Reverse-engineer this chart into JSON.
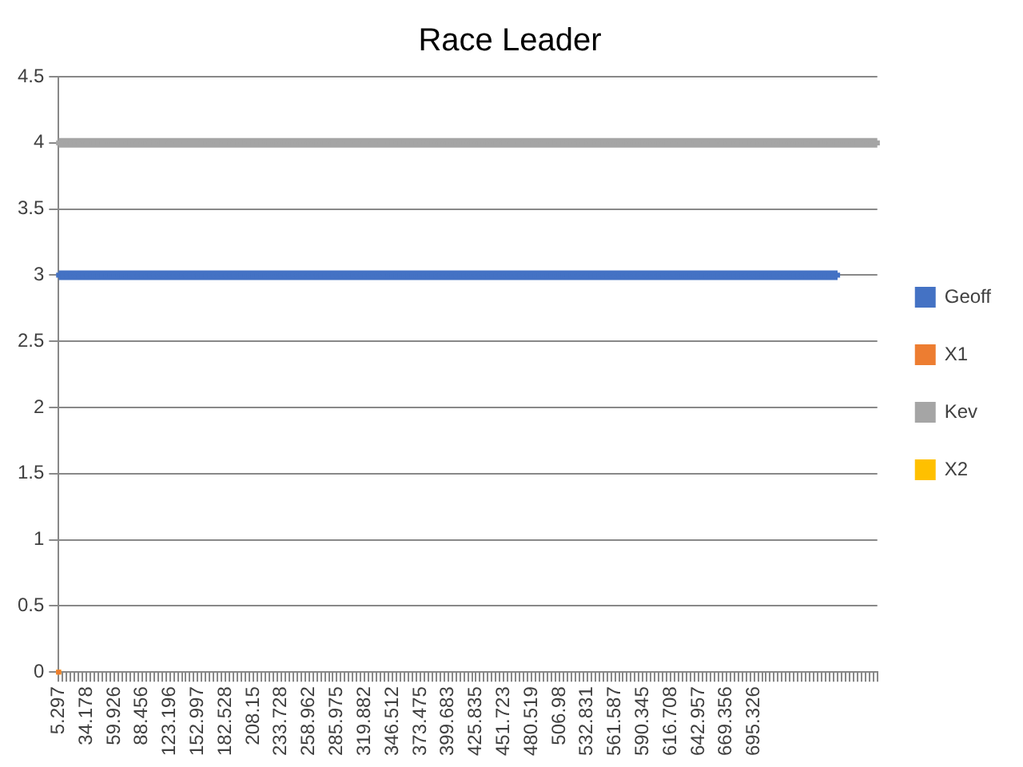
{
  "chart_data": {
    "type": "line",
    "title": "Race Leader",
    "categories": [
      "5.297",
      null,
      null,
      null,
      null,
      null,
      null,
      "34.178",
      null,
      null,
      null,
      null,
      null,
      null,
      "59.926",
      null,
      null,
      null,
      null,
      null,
      null,
      "88.456",
      null,
      null,
      null,
      null,
      null,
      null,
      "123.196",
      null,
      null,
      null,
      null,
      null,
      null,
      "152.997",
      null,
      null,
      null,
      null,
      null,
      null,
      "182.528",
      null,
      null,
      null,
      null,
      null,
      null,
      "208.15",
      null,
      null,
      null,
      null,
      null,
      null,
      "233.728",
      null,
      null,
      null,
      null,
      null,
      null,
      "258.962",
      null,
      null,
      null,
      null,
      null,
      null,
      "285.975",
      null,
      null,
      null,
      null,
      null,
      null,
      "319.882",
      null,
      null,
      null,
      null,
      null,
      null,
      "346.512",
      null,
      null,
      null,
      null,
      null,
      null,
      "373.475",
      null,
      null,
      null,
      null,
      null,
      null,
      "399.683",
      null,
      null,
      null,
      null,
      null,
      null,
      "425.835",
      null,
      null,
      null,
      null,
      null,
      null,
      "451.723",
      null,
      null,
      null,
      null,
      null,
      null,
      "480.519",
      null,
      null,
      null,
      null,
      null,
      null,
      "506.98",
      null,
      null,
      null,
      null,
      null,
      null,
      "532.831",
      null,
      null,
      null,
      null,
      null,
      null,
      "561.587",
      null,
      null,
      null,
      null,
      null,
      null,
      "590.345",
      null,
      null,
      null,
      null,
      null,
      null,
      "616.708",
      null,
      null,
      null,
      null,
      null,
      null,
      "642.957",
      null,
      null,
      null,
      null,
      null,
      null,
      "669.356",
      null,
      null,
      null,
      null,
      null,
      null,
      "695.326",
      null,
      null,
      null,
      null,
      null,
      null,
      null,
      null,
      null,
      null,
      null,
      null,
      null,
      null,
      null,
      null,
      null,
      null,
      null,
      null,
      null,
      null,
      null,
      null,
      null,
      null,
      null,
      null,
      null,
      null,
      null
    ],
    "series": [
      {
        "name": "Geoff",
        "color": "#4472c4",
        "values": [
          3,
          3,
          3,
          3,
          3,
          3,
          3,
          3,
          3,
          3,
          3,
          3,
          3,
          3,
          3,
          3,
          3,
          3,
          3,
          3,
          3,
          3,
          3,
          3,
          3,
          3,
          3,
          3,
          3,
          3,
          3,
          3,
          3,
          3,
          3,
          3,
          3,
          3,
          3,
          3,
          3,
          3,
          3,
          3,
          3,
          3,
          3,
          3,
          3,
          3,
          3,
          3,
          3,
          3,
          3,
          3,
          3,
          3,
          3,
          3,
          3,
          3,
          3,
          3,
          3,
          3,
          3,
          3,
          3,
          3,
          3,
          3,
          3,
          3,
          3,
          3,
          3,
          3,
          3,
          3,
          3,
          3,
          3,
          3,
          3,
          3,
          3,
          3,
          3,
          3,
          3,
          3,
          3,
          3,
          3,
          3,
          3,
          3,
          3,
          3,
          3,
          3,
          3,
          3,
          3,
          3,
          3,
          3,
          3,
          3,
          3,
          3,
          3,
          3,
          3,
          3,
          3,
          3,
          3,
          3,
          3,
          3,
          3,
          3,
          3,
          3,
          3,
          3,
          3,
          3,
          3,
          3,
          3,
          3,
          3,
          3,
          3,
          3,
          3,
          3,
          3,
          3,
          3,
          3,
          3,
          3,
          3,
          3,
          3,
          3,
          3,
          3,
          3,
          3,
          3,
          3,
          3,
          3,
          3,
          3,
          3,
          3,
          3,
          3,
          3,
          3,
          3,
          3,
          3,
          3,
          3,
          3,
          3,
          3,
          3,
          3,
          3,
          3,
          3,
          3,
          3,
          3,
          3,
          3,
          3,
          3,
          3,
          3,
          3,
          3,
          3,
          3,
          3,
          3,
          3,
          3,
          3,
          null,
          null,
          null,
          null,
          null,
          null,
          null,
          null,
          null,
          null
        ]
      },
      {
        "name": "X1",
        "color": "#ed7d31",
        "values": [
          0,
          null,
          null,
          null,
          null,
          null,
          null,
          null,
          null,
          null,
          null,
          null,
          null,
          null,
          null,
          null,
          null,
          null,
          null,
          null,
          null,
          null,
          null,
          null,
          null,
          null,
          null,
          null,
          null,
          null,
          null,
          null,
          null,
          null,
          null,
          null,
          null,
          null,
          null,
          null,
          null,
          null,
          null,
          null,
          null,
          null,
          null,
          null,
          null,
          null,
          null,
          null,
          null,
          null,
          null,
          null,
          null,
          null,
          null,
          null,
          null,
          null,
          null,
          null,
          null,
          null,
          null,
          null,
          null,
          null,
          null,
          null,
          null,
          null,
          null,
          null,
          null,
          null,
          null,
          null,
          null,
          null,
          null,
          null,
          null,
          null,
          null,
          null,
          null,
          null,
          null,
          null,
          null,
          null,
          null,
          null,
          null,
          null,
          null,
          null,
          null,
          null,
          null,
          null,
          null,
          null,
          null,
          null,
          null,
          null,
          null,
          null,
          null,
          null,
          null,
          null,
          null,
          null,
          null,
          null,
          null,
          null,
          null,
          null,
          null,
          null,
          null,
          null,
          null,
          null,
          null,
          null,
          null,
          null,
          null,
          null,
          null,
          null,
          null,
          null,
          null,
          null,
          null,
          null,
          null,
          null,
          null,
          null,
          null,
          null,
          null,
          null,
          null,
          null,
          null,
          null,
          null,
          null,
          null,
          null,
          null,
          null,
          null,
          null,
          null,
          null,
          null,
          null,
          null,
          null,
          null,
          null,
          null,
          null,
          null,
          null,
          null,
          null,
          null,
          null,
          null,
          null,
          null,
          null,
          null,
          null,
          null,
          null,
          null,
          null,
          null,
          null,
          null,
          null,
          null,
          null,
          null,
          null,
          null,
          null,
          null,
          null,
          null,
          null,
          null,
          null,
          null
        ]
      },
      {
        "name": "Kev",
        "color": "#a5a5a5",
        "values": [
          4,
          4,
          4,
          4,
          4,
          4,
          4,
          4,
          4,
          4,
          4,
          4,
          4,
          4,
          4,
          4,
          4,
          4,
          4,
          4,
          4,
          4,
          4,
          4,
          4,
          4,
          4,
          4,
          4,
          4,
          4,
          4,
          4,
          4,
          4,
          4,
          4,
          4,
          4,
          4,
          4,
          4,
          4,
          4,
          4,
          4,
          4,
          4,
          4,
          4,
          4,
          4,
          4,
          4,
          4,
          4,
          4,
          4,
          4,
          4,
          4,
          4,
          4,
          4,
          4,
          4,
          4,
          4,
          4,
          4,
          4,
          4,
          4,
          4,
          4,
          4,
          4,
          4,
          4,
          4,
          4,
          4,
          4,
          4,
          4,
          4,
          4,
          4,
          4,
          4,
          4,
          4,
          4,
          4,
          4,
          4,
          4,
          4,
          4,
          4,
          4,
          4,
          4,
          4,
          4,
          4,
          4,
          4,
          4,
          4,
          4,
          4,
          4,
          4,
          4,
          4,
          4,
          4,
          4,
          4,
          4,
          4,
          4,
          4,
          4,
          4,
          4,
          4,
          4,
          4,
          4,
          4,
          4,
          4,
          4,
          4,
          4,
          4,
          4,
          4,
          4,
          4,
          4,
          4,
          4,
          4,
          4,
          4,
          4,
          4,
          4,
          4,
          4,
          4,
          4,
          4,
          4,
          4,
          4,
          4,
          4,
          4,
          4,
          4,
          4,
          4,
          4,
          4,
          4,
          4,
          4,
          4,
          4,
          4,
          4,
          4,
          4,
          4,
          4,
          4,
          4,
          4,
          4,
          4,
          4,
          4,
          4,
          4,
          4,
          4,
          4,
          4,
          4,
          4,
          4,
          4,
          4,
          4,
          4,
          4,
          4,
          4,
          4,
          4,
          4,
          4,
          4
        ]
      },
      {
        "name": "X2",
        "color": "#ffc000",
        "values": [
          0,
          null,
          null,
          null,
          null,
          null,
          null,
          null,
          null,
          null,
          null,
          null,
          null,
          null,
          null,
          null,
          null,
          null,
          null,
          null,
          null,
          null,
          null,
          null,
          null,
          null,
          null,
          null,
          null,
          null,
          null,
          null,
          null,
          null,
          null,
          null,
          null,
          null,
          null,
          null,
          null,
          null,
          null,
          null,
          null,
          null,
          null,
          null,
          null,
          null,
          null,
          null,
          null,
          null,
          null,
          null,
          null,
          null,
          null,
          null,
          null,
          null,
          null,
          null,
          null,
          null,
          null,
          null,
          null,
          null,
          null,
          null,
          null,
          null,
          null,
          null,
          null,
          null,
          null,
          null,
          null,
          null,
          null,
          null,
          null,
          null,
          null,
          null,
          null,
          null,
          null,
          null,
          null,
          null,
          null,
          null,
          null,
          null,
          null,
          null,
          null,
          null,
          null,
          null,
          null,
          null,
          null,
          null,
          null,
          null,
          null,
          null,
          null,
          null,
          null,
          null,
          null,
          null,
          null,
          null,
          null,
          null,
          null,
          null,
          null,
          null,
          null,
          null,
          null,
          null,
          null,
          null,
          null,
          null,
          null,
          null,
          null,
          null,
          null,
          null,
          null,
          null,
          null,
          null,
          null,
          null,
          null,
          null,
          null,
          null,
          null,
          null,
          null,
          null,
          null,
          null,
          null,
          null,
          null,
          null,
          null,
          null,
          null,
          null,
          null,
          null,
          null,
          null,
          null,
          null,
          null,
          null,
          null,
          null,
          null,
          null,
          null,
          null,
          null,
          null,
          null,
          null,
          null,
          null,
          null,
          null,
          null,
          null,
          null,
          null,
          null,
          null,
          null,
          null,
          null,
          null,
          null,
          null,
          null,
          null,
          null,
          null,
          null,
          null,
          null,
          null,
          null
        ]
      }
    ],
    "ylim": [
      0,
      4.5
    ],
    "yticks": [
      0,
      0.5,
      1,
      1.5,
      2,
      2.5,
      3,
      3.5,
      4,
      4.5
    ],
    "grid": "y",
    "legend": "right",
    "marker": "square"
  }
}
